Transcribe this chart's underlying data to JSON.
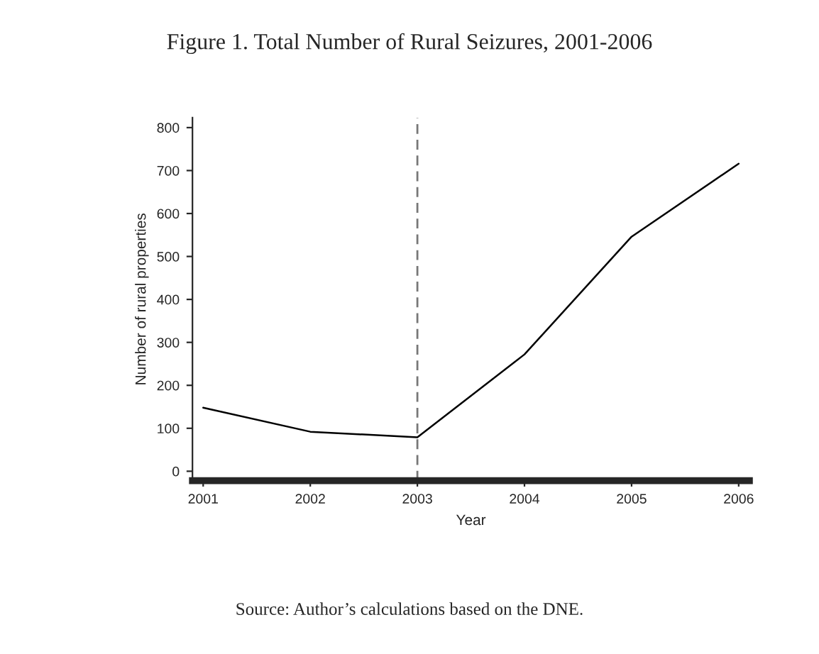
{
  "chart_data": {
    "type": "line",
    "title": "Figure 1. Total Number of Rural Seizures, 2001-2006",
    "xlabel": "Year",
    "ylabel": "Number of rural properties",
    "x": [
      2001,
      2002,
      2003,
      2004,
      2005,
      2006
    ],
    "series": [
      {
        "color": "#000000",
        "values": [
          148,
          92,
          79,
          272,
          546,
          716
        ]
      }
    ],
    "xlim": [
      2000.9,
      2006.1
    ],
    "ylim": [
      -22,
      823
    ],
    "xticks": [
      2001,
      2002,
      2003,
      2004,
      2005,
      2006
    ],
    "yticks": [
      0,
      100,
      200,
      300,
      400,
      500,
      600,
      700,
      800
    ],
    "ref_lines": [
      {
        "axis": "x",
        "value": 2003,
        "color": "#777777",
        "line_style": "dashed"
      }
    ],
    "annotations": [
      "Source: Author’s calculations based on the DNE."
    ],
    "grid": false,
    "legend": false
  }
}
